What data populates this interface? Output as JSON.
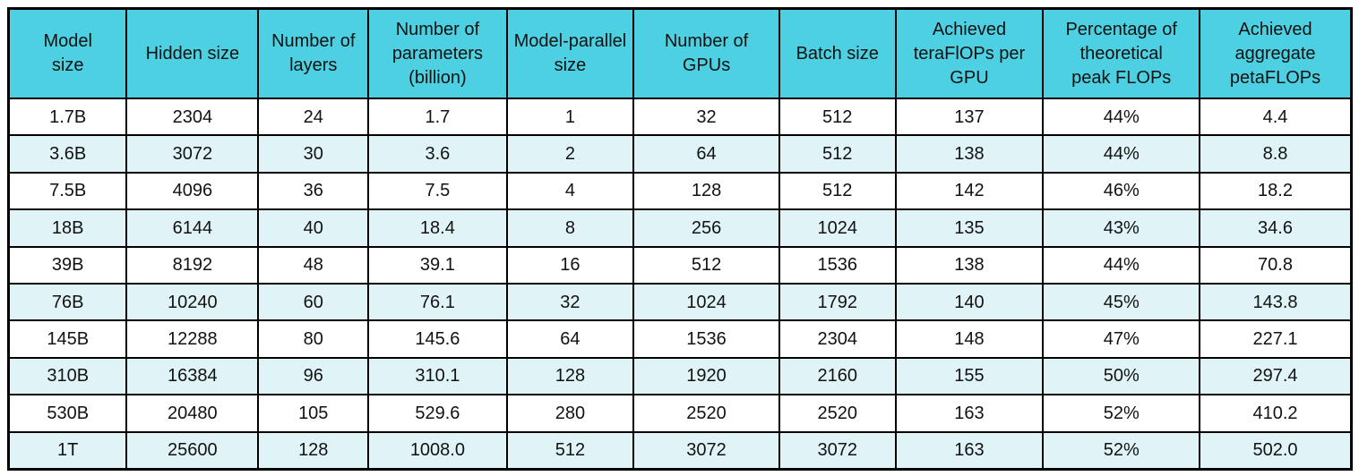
{
  "chart_data": {
    "type": "table",
    "columns": [
      "Model\nsize",
      "Hidden size",
      "Number of\nlayers",
      "Number of\nparameters\n(billion)",
      "Model-parallel\nsize",
      "Number of\nGPUs",
      "Batch size",
      "Achieved\nteraFlOPs per\nGPU",
      "Percentage of\ntheoretical\npeak FLOPs",
      "Achieved\naggregate\npetaFLOPs"
    ],
    "rows": [
      [
        "1.7B",
        "2304",
        "24",
        "1.7",
        "1",
        "32",
        "512",
        "137",
        "44%",
        "4.4"
      ],
      [
        "3.6B",
        "3072",
        "30",
        "3.6",
        "2",
        "64",
        "512",
        "138",
        "44%",
        "8.8"
      ],
      [
        "7.5B",
        "4096",
        "36",
        "7.5",
        "4",
        "128",
        "512",
        "142",
        "46%",
        "18.2"
      ],
      [
        "18B",
        "6144",
        "40",
        "18.4",
        "8",
        "256",
        "1024",
        "135",
        "43%",
        "34.6"
      ],
      [
        "39B",
        "8192",
        "48",
        "39.1",
        "16",
        "512",
        "1536",
        "138",
        "44%",
        "70.8"
      ],
      [
        "76B",
        "10240",
        "60",
        "76.1",
        "32",
        "1024",
        "1792",
        "140",
        "45%",
        "143.8"
      ],
      [
        "145B",
        "12288",
        "80",
        "145.6",
        "64",
        "1536",
        "2304",
        "148",
        "47%",
        "227.1"
      ],
      [
        "310B",
        "16384",
        "96",
        "310.1",
        "128",
        "1920",
        "2160",
        "155",
        "50%",
        "297.4"
      ],
      [
        "530B",
        "20480",
        "105",
        "529.6",
        "280",
        "2520",
        "2520",
        "163",
        "52%",
        "410.2"
      ],
      [
        "1T",
        "25600",
        "128",
        "1008.0",
        "512",
        "3072",
        "3072",
        "163",
        "52%",
        "502.0"
      ]
    ]
  },
  "colors": {
    "header_bg": "#4dd0e1",
    "row_odd_bg": "#ffffff",
    "row_even_bg": "#e0f4f8",
    "border": "#000000",
    "text": "#121212"
  }
}
